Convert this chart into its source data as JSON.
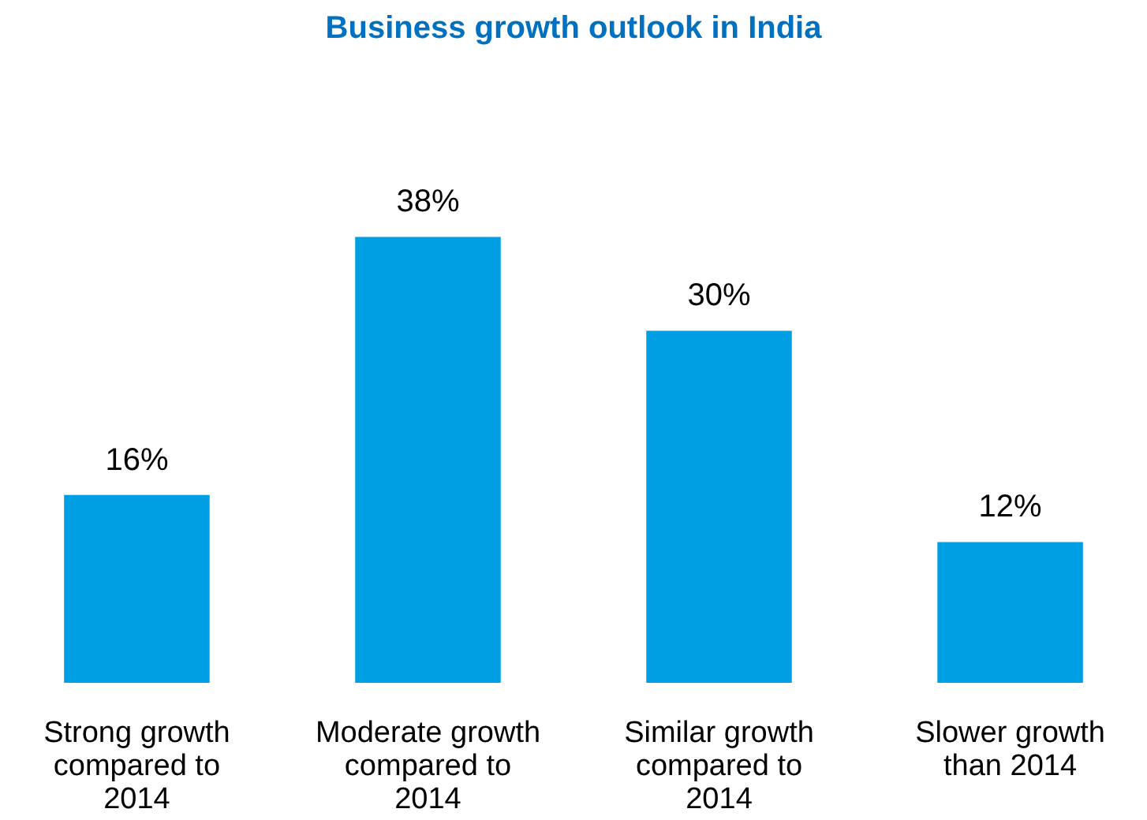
{
  "chart_data": {
    "type": "bar",
    "title": "Business growth outlook in India",
    "categories": [
      "Strong growth\ncompared to\n2014",
      "Moderate growth\ncompared to\n2014",
      "Similar growth\ncompared to\n2014",
      "Slower growth\nthan 2014"
    ],
    "values": [
      16,
      38,
      30,
      12
    ],
    "value_labels": [
      "16%",
      "38%",
      "30%",
      "12%"
    ],
    "color": "#009fe3"
  }
}
